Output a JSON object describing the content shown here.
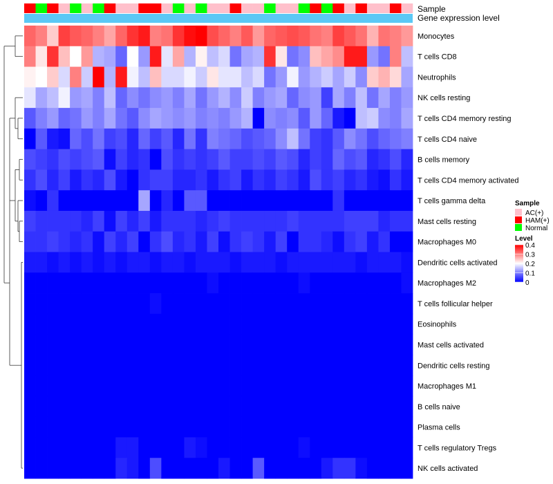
{
  "chart_data": {
    "type": "heatmap",
    "title": "",
    "annotation_labels": {
      "sample": "Sample",
      "group": "Gene expression level"
    },
    "row_labels": [
      "Monocytes",
      "T cells CD8",
      "Neutrophils",
      "NK cells resting",
      "T cells CD4 memory resting",
      "T cells CD4 naive",
      "B cells memory",
      "T cells CD4 memory activated",
      "T cells gamma delta",
      "Mast cells resting",
      "Macrophages M0",
      "Dendritic cells activated",
      "Macrophages M2",
      "T cells follicular helper",
      "Eosinophils",
      "Mast cells activated",
      "Dendritic cells resting",
      "Macrophages M1",
      "B cells naive",
      "Plasma cells",
      "T cells regulatory  Tregs",
      "NK cells activated"
    ],
    "sample_groups": [
      "HAM(+)",
      "Normal",
      "HAM(+)",
      "AC(+)",
      "Normal",
      "AC(+)",
      "Normal",
      "HAM(+)",
      "AC(+)",
      "AC(+)",
      "HAM(+)",
      "HAM(+)",
      "AC(+)",
      "Normal",
      "AC(+)",
      "Normal",
      "AC(+)",
      "AC(+)",
      "HAM(+)",
      "AC(+)",
      "AC(+)",
      "Normal",
      "AC(+)",
      "AC(+)",
      "Normal",
      "HAM(+)",
      "Normal",
      "HAM(+)",
      "AC(+)",
      "HAM(+)",
      "AC(+)",
      "AC(+)",
      "HAM(+)",
      "AC(+)"
    ],
    "values": [
      [
        0.32,
        0.3,
        0.24,
        0.35,
        0.33,
        0.32,
        0.3,
        0.27,
        0.32,
        0.36,
        0.38,
        0.3,
        0.31,
        0.36,
        0.39,
        0.4,
        0.34,
        0.32,
        0.3,
        0.33,
        0.28,
        0.32,
        0.33,
        0.34,
        0.33,
        0.31,
        0.3,
        0.35,
        0.33,
        0.31,
        0.26,
        0.31,
        0.3,
        0.28
      ],
      [
        0.3,
        0.22,
        0.36,
        0.25,
        0.2,
        0.28,
        0.14,
        0.13,
        0.08,
        0.2,
        0.12,
        0.38,
        0.18,
        0.27,
        0.14,
        0.21,
        0.15,
        0.17,
        0.09,
        0.13,
        0.14,
        0.36,
        0.22,
        0.09,
        0.11,
        0.25,
        0.27,
        0.29,
        0.38,
        0.38,
        0.12,
        0.09,
        0.3,
        0.15
      ],
      [
        0.21,
        0.2,
        0.24,
        0.17,
        0.3,
        0.16,
        0.4,
        0.14,
        0.38,
        0.19,
        0.15,
        0.25,
        0.17,
        0.17,
        0.19,
        0.16,
        0.22,
        0.18,
        0.18,
        0.15,
        0.17,
        0.09,
        0.12,
        0.19,
        0.12,
        0.14,
        0.16,
        0.13,
        0.16,
        0.11,
        0.24,
        0.26,
        0.23,
        0.13
      ],
      [
        0.18,
        0.13,
        0.15,
        0.19,
        0.12,
        0.13,
        0.1,
        0.15,
        0.08,
        0.11,
        0.09,
        0.11,
        0.12,
        0.1,
        0.13,
        0.09,
        0.12,
        0.14,
        0.11,
        0.16,
        0.1,
        0.12,
        0.13,
        0.08,
        0.11,
        0.12,
        0.05,
        0.13,
        0.1,
        0.15,
        0.09,
        0.13,
        0.1,
        0.12
      ],
      [
        0.07,
        0.1,
        0.12,
        0.08,
        0.09,
        0.12,
        0.1,
        0.13,
        0.09,
        0.07,
        0.11,
        0.13,
        0.12,
        0.11,
        0.12,
        0.1,
        0.11,
        0.1,
        0.12,
        0.14,
        0.0,
        0.11,
        0.1,
        0.11,
        0.07,
        0.12,
        0.08,
        0.02,
        0.0,
        0.15,
        0.16,
        0.11,
        0.1,
        0.13
      ],
      [
        0.0,
        0.07,
        0.02,
        0.01,
        0.08,
        0.06,
        0.09,
        0.05,
        0.06,
        0.03,
        0.08,
        0.05,
        0.07,
        0.03,
        0.09,
        0.04,
        0.1,
        0.09,
        0.08,
        0.06,
        0.07,
        0.08,
        0.11,
        0.15,
        0.09,
        0.05,
        0.04,
        0.07,
        0.11,
        0.09,
        0.06,
        0.08,
        0.09,
        0.1
      ],
      [
        0.06,
        0.05,
        0.04,
        0.06,
        0.05,
        0.06,
        0.07,
        0.01,
        0.05,
        0.03,
        0.04,
        0.0,
        0.06,
        0.04,
        0.05,
        0.04,
        0.05,
        0.07,
        0.05,
        0.05,
        0.06,
        0.05,
        0.07,
        0.06,
        0.03,
        0.05,
        0.04,
        0.08,
        0.06,
        0.07,
        0.03,
        0.04,
        0.06,
        0.03
      ],
      [
        0.04,
        0.06,
        0.03,
        0.05,
        0.02,
        0.04,
        0.03,
        0.06,
        0.02,
        0.0,
        0.04,
        0.05,
        0.05,
        0.03,
        0.03,
        0.04,
        0.02,
        0.04,
        0.05,
        0.02,
        0.04,
        0.03,
        0.05,
        0.04,
        0.02,
        0.06,
        0.04,
        0.05,
        0.03,
        0.04,
        0.02,
        0.01,
        0.04,
        0.02
      ],
      [
        0.01,
        0.0,
        0.04,
        0.0,
        0.0,
        0.0,
        0.0,
        0.0,
        0.0,
        0.0,
        0.13,
        0.0,
        0.03,
        0.0,
        0.07,
        0.07,
        0.0,
        0.0,
        0.0,
        0.0,
        0.0,
        0.0,
        0.0,
        0.0,
        0.0,
        0.0,
        0.0,
        0.04,
        0.0,
        0.0,
        0.0,
        0.0,
        0.0,
        0.0
      ],
      [
        0.05,
        0.04,
        0.04,
        0.04,
        0.04,
        0.03,
        0.05,
        0.01,
        0.05,
        0.03,
        0.05,
        0.02,
        0.04,
        0.04,
        0.04,
        0.03,
        0.04,
        0.05,
        0.04,
        0.04,
        0.04,
        0.04,
        0.04,
        0.05,
        0.04,
        0.04,
        0.04,
        0.04,
        0.05,
        0.05,
        0.05,
        0.03,
        0.04,
        0.04
      ],
      [
        0.04,
        0.04,
        0.05,
        0.04,
        0.03,
        0.04,
        0.01,
        0.05,
        0.03,
        0.05,
        0.0,
        0.04,
        0.06,
        0.03,
        0.04,
        0.02,
        0.05,
        0.01,
        0.04,
        0.05,
        0.04,
        0.02,
        0.05,
        0.0,
        0.04,
        0.04,
        0.03,
        0.01,
        0.04,
        0.05,
        0.02,
        0.04,
        0.0,
        0.0
      ],
      [
        0.02,
        0.02,
        0.01,
        0.02,
        0.01,
        0.02,
        0.01,
        0.02,
        0.01,
        0.02,
        0.02,
        0.01,
        0.02,
        0.02,
        0.01,
        0.02,
        0.02,
        0.02,
        0.01,
        0.02,
        0.02,
        0.02,
        0.01,
        0.02,
        0.02,
        0.02,
        0.02,
        0.02,
        0.02,
        0.01,
        0.02,
        0.02,
        0.02,
        0.01
      ],
      [
        0.0,
        0.0,
        0.0,
        0.0,
        0.0,
        0.0,
        0.0,
        0.0,
        0.0,
        0.0,
        0.0,
        0.0,
        0.0,
        0.0,
        0.0,
        0.0,
        0.01,
        0.0,
        0.0,
        0.0,
        0.0,
        0.0,
        0.0,
        0.0,
        0.01,
        0.0,
        0.0,
        0.0,
        0.0,
        0.0,
        0.0,
        0.0,
        0.0,
        0.01
      ],
      [
        0.0,
        0.0,
        0.0,
        0.0,
        0.0,
        0.0,
        0.0,
        0.0,
        0.0,
        0.0,
        0.0,
        0.01,
        0.0,
        0.0,
        0.0,
        0.0,
        0.0,
        0.0,
        0.0,
        0.0,
        0.0,
        0.0,
        0.0,
        0.0,
        0.0,
        0.0,
        0.0,
        0.0,
        0.0,
        0.0,
        0.0,
        0.0,
        0.0,
        0.0
      ],
      [
        0.0,
        0.0,
        0.0,
        0.0,
        0.0,
        0.0,
        0.0,
        0.0,
        0.0,
        0.0,
        0.0,
        0.0,
        0.0,
        0.0,
        0.0,
        0.0,
        0.0,
        0.0,
        0.0,
        0.0,
        0.0,
        0.0,
        0.0,
        0.0,
        0.0,
        0.0,
        0.0,
        0.0,
        0.0,
        0.0,
        0.0,
        0.0,
        0.0,
        0.0
      ],
      [
        0.0,
        0.0,
        0.0,
        0.0,
        0.0,
        0.0,
        0.0,
        0.0,
        0.0,
        0.0,
        0.0,
        0.0,
        0.0,
        0.0,
        0.0,
        0.0,
        0.0,
        0.0,
        0.0,
        0.0,
        0.0,
        0.0,
        0.0,
        0.0,
        0.0,
        0.0,
        0.0,
        0.0,
        0.0,
        0.0,
        0.0,
        0.0,
        0.0,
        0.0
      ],
      [
        0.0,
        0.0,
        0.0,
        0.0,
        0.0,
        0.0,
        0.0,
        0.0,
        0.0,
        0.0,
        0.0,
        0.0,
        0.0,
        0.0,
        0.0,
        0.0,
        0.0,
        0.0,
        0.0,
        0.0,
        0.0,
        0.0,
        0.0,
        0.0,
        0.0,
        0.0,
        0.0,
        0.0,
        0.0,
        0.0,
        0.0,
        0.0,
        0.0,
        0.0
      ],
      [
        0.0,
        0.0,
        0.0,
        0.0,
        0.0,
        0.0,
        0.0,
        0.0,
        0.0,
        0.0,
        0.0,
        0.0,
        0.0,
        0.0,
        0.0,
        0.0,
        0.0,
        0.0,
        0.0,
        0.0,
        0.0,
        0.0,
        0.0,
        0.0,
        0.0,
        0.0,
        0.0,
        0.0,
        0.0,
        0.0,
        0.0,
        0.0,
        0.0,
        0.0
      ],
      [
        0.0,
        0.0,
        0.0,
        0.0,
        0.0,
        0.0,
        0.0,
        0.0,
        0.0,
        0.0,
        0.0,
        0.0,
        0.0,
        0.0,
        0.0,
        0.0,
        0.0,
        0.0,
        0.0,
        0.0,
        0.0,
        0.0,
        0.0,
        0.0,
        0.0,
        0.0,
        0.0,
        0.0,
        0.0,
        0.0,
        0.0,
        0.0,
        0.0,
        0.0
      ],
      [
        0.0,
        0.0,
        0.0,
        0.0,
        0.0,
        0.0,
        0.0,
        0.0,
        0.0,
        0.0,
        0.0,
        0.0,
        0.0,
        0.0,
        0.0,
        0.0,
        0.0,
        0.0,
        0.0,
        0.0,
        0.0,
        0.0,
        0.0,
        0.0,
        0.0,
        0.0,
        0.0,
        0.0,
        0.0,
        0.0,
        0.0,
        0.0,
        0.0,
        0.0
      ],
      [
        0.0,
        0.0,
        0.0,
        0.0,
        0.0,
        0.0,
        0.0,
        0.0,
        0.02,
        0.02,
        0.0,
        0.0,
        0.0,
        0.0,
        0.02,
        0.01,
        0.0,
        0.0,
        0.0,
        0.0,
        0.0,
        0.0,
        0.0,
        0.0,
        0.01,
        0.0,
        0.0,
        0.0,
        0.0,
        0.0,
        0.0,
        0.0,
        0.0,
        0.0
      ],
      [
        0.0,
        0.0,
        0.0,
        0.0,
        0.0,
        0.0,
        0.0,
        0.0,
        0.03,
        0.02,
        0.0,
        0.06,
        0.0,
        0.0,
        0.0,
        0.0,
        0.0,
        0.02,
        0.0,
        0.0,
        0.07,
        0.0,
        0.0,
        0.0,
        0.0,
        0.0,
        0.02,
        0.04,
        0.04,
        0.01,
        0.0,
        0.0,
        0.0,
        0.0
      ]
    ],
    "color_scale": {
      "min": 0,
      "max": 0.4,
      "low": "#0000ff",
      "mid": "#ffffff",
      "high": "#ff0000"
    },
    "legend": {
      "sample_title": "Sample",
      "sample_entries": [
        {
          "label": "AC(+)",
          "color": "#ffc0cb"
        },
        {
          "label": "HAM(+)",
          "color": "#ff0000"
        },
        {
          "label": "Normal",
          "color": "#00ff00"
        }
      ],
      "level_title": "Level",
      "level_ticks": [
        "0.4",
        "0.3",
        "0.2",
        "0.1",
        "0"
      ],
      "level_values": [
        0.4,
        0.3,
        0.2,
        0.1,
        0
      ]
    },
    "group_color": "#5bc8f5",
    "legend_position": "right"
  }
}
